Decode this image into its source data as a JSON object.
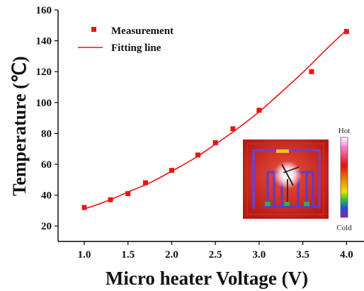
{
  "chart_data": {
    "type": "scatter",
    "xlabel": "Micro heater Voltage (V)",
    "ylabel": "Temperature (℃)",
    "xlim": [
      0.7,
      4.2
    ],
    "ylim": [
      10,
      160
    ],
    "xticks": [
      "1.0",
      "1.5",
      "2.0",
      "2.5",
      "3.0",
      "3.5",
      "4.0"
    ],
    "yticks": [
      "20",
      "40",
      "60",
      "80",
      "100",
      "120",
      "140",
      "160"
    ],
    "grid": false,
    "legend_position": "top-left",
    "series": [
      {
        "name": "Measurement",
        "kind": "markers",
        "color": "#ee1111",
        "x": [
          1.0,
          1.3,
          1.5,
          1.7,
          2.0,
          2.3,
          2.5,
          2.7,
          3.0,
          3.6,
          4.0
        ],
        "y": [
          32,
          37,
          41,
          48,
          56,
          66,
          74,
          83,
          95,
          120,
          146
        ]
      },
      {
        "name": "Fitting line",
        "kind": "line",
        "color": "#ee1111",
        "x": [
          1.0,
          1.25,
          1.5,
          1.75,
          2.0,
          2.25,
          2.5,
          2.75,
          3.0,
          3.25,
          3.5,
          3.75,
          4.0
        ],
        "y": [
          31,
          36,
          42,
          48,
          55.5,
          63.5,
          73,
          83,
          94,
          106.5,
          119.5,
          133.5,
          147
        ]
      }
    ],
    "inset": {
      "kind": "thermal image",
      "colorbar_top_label": "Hot",
      "colorbar_bottom_label": "Cold"
    }
  }
}
